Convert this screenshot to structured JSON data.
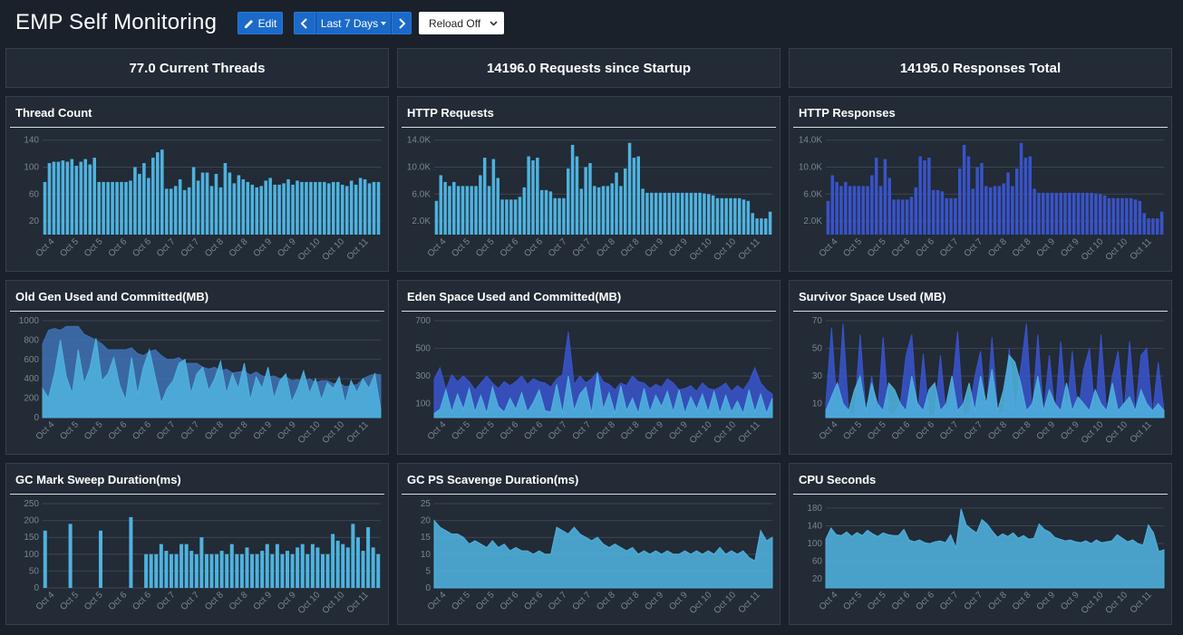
{
  "header": {
    "title": "EMP Self Monitoring",
    "edit_label": "Edit",
    "range_label": "Last 7 Days",
    "reload_label": "Reload Off"
  },
  "stats": [
    {
      "text": "77.0 Current Threads"
    },
    {
      "text": "14196.0 Requests since Startup"
    },
    {
      "text": "14195.0 Responses Total"
    }
  ],
  "x_labels": [
    "Oct 4",
    "Oct 5",
    "Oct 5",
    "Oct 6",
    "Oct 6",
    "Oct 7",
    "Oct 7",
    "Oct 8",
    "Oct 8",
    "Oct 9",
    "Oct 9",
    "Oct 10",
    "Oct 10",
    "Oct 11"
  ],
  "colors": {
    "primary": "#4fb2de",
    "secondary": "#3953c9",
    "muted": "#3e6fb0",
    "button": "#1b6ac9"
  },
  "panels": [
    {
      "title": "Thread Count"
    },
    {
      "title": "HTTP Requests"
    },
    {
      "title": "HTTP Responses"
    },
    {
      "title": "Old Gen Used and Committed(MB)"
    },
    {
      "title": "Eden Space Used and Committed(MB)"
    },
    {
      "title": "Survivor Space Used (MB)"
    },
    {
      "title": "GC Mark Sweep Duration(ms)"
    },
    {
      "title": "GC PS Scavenge Duration(ms)"
    },
    {
      "title": "CPU Seconds"
    }
  ],
  "chart_data": [
    {
      "name": "Thread Count",
      "type": "bar",
      "color": "primary",
      "yticks": [
        "140",
        "100",
        "60",
        "20"
      ],
      "ytick_values": [
        140,
        100,
        60,
        20
      ],
      "ylim": [
        0,
        145
      ],
      "series": [
        {
          "values": [
            78,
            106,
            108,
            108,
            110,
            108,
            112,
            102,
            108,
            112,
            104,
            114,
            78,
            78,
            78,
            78,
            78,
            78,
            78,
            80,
            100,
            90,
            106,
            84,
            114,
            122,
            126,
            68,
            68,
            72,
            82,
            66,
            70,
            100,
            80,
            92,
            92,
            72,
            90,
            70,
            106,
            92,
            76,
            88,
            82,
            78,
            74,
            70,
            72,
            80,
            84,
            74,
            74,
            76,
            82,
            74,
            80,
            78,
            78,
            78,
            78,
            78,
            78,
            76,
            78,
            78,
            74,
            72,
            80,
            74,
            84,
            82,
            76,
            78,
            78
          ]
        }
      ]
    },
    {
      "name": "HTTP Requests",
      "type": "bar",
      "color": "primary",
      "yticks": [
        "14.0K",
        "10.0K",
        "6.0K",
        "2.0K"
      ],
      "ytick_values": [
        14000,
        10000,
        6000,
        2000
      ],
      "ylim": [
        0,
        14500
      ],
      "series": [
        {
          "values": [
            5000,
            8800,
            7800,
            7200,
            7800,
            7200,
            7200,
            7200,
            7200,
            7200,
            8800,
            11400,
            7200,
            11200,
            8400,
            5200,
            5200,
            5200,
            5200,
            5600,
            7000,
            11600,
            11000,
            11400,
            6600,
            6600,
            6400,
            5400,
            5400,
            5400,
            9800,
            13300,
            11600,
            6800,
            10000,
            10600,
            7200,
            7000,
            7200,
            7200,
            7600,
            9200,
            7200,
            9800,
            13600,
            11400,
            11600,
            6800,
            6200,
            6200,
            6200,
            6200,
            6200,
            6200,
            6200,
            6200,
            6200,
            6200,
            6200,
            6200,
            6200,
            6100,
            6000,
            5800,
            5400,
            5400,
            5400,
            5400,
            5400,
            5400,
            5200,
            5000,
            3200,
            2400,
            2400,
            2400,
            3400
          ]
        }
      ]
    },
    {
      "name": "HTTP Responses",
      "type": "bar",
      "color": "secondary",
      "yticks": [
        "14.0K",
        "10.0K",
        "6.0K",
        "2.0K"
      ],
      "ytick_values": [
        14000,
        10000,
        6000,
        2000
      ],
      "ylim": [
        0,
        14500
      ],
      "series": [
        {
          "values": [
            5000,
            8800,
            7800,
            7200,
            7800,
            7200,
            7200,
            7200,
            7200,
            7200,
            8800,
            11400,
            7200,
            11200,
            8400,
            5200,
            5200,
            5200,
            5200,
            5600,
            7000,
            11600,
            11000,
            11400,
            6600,
            6600,
            6400,
            5400,
            5400,
            5400,
            9800,
            13300,
            11600,
            6800,
            10000,
            10600,
            7200,
            7000,
            7200,
            7200,
            7600,
            9200,
            7200,
            9800,
            13600,
            11400,
            11600,
            6800,
            6200,
            6200,
            6200,
            6200,
            6200,
            6200,
            6200,
            6200,
            6200,
            6200,
            6200,
            6200,
            6200,
            6100,
            6000,
            5800,
            5400,
            5400,
            5400,
            5400,
            5400,
            5400,
            5200,
            5000,
            3200,
            2400,
            2400,
            2400,
            3400
          ]
        }
      ]
    },
    {
      "name": "Old Gen Used and Committed(MB)",
      "type": "area",
      "yticks": [
        "1000",
        "800",
        "600",
        "400",
        "200",
        "0"
      ],
      "ytick_values": [
        1000,
        800,
        600,
        400,
        200,
        0
      ],
      "ylim": [
        0,
        1000
      ],
      "series": [
        {
          "name": "committed",
          "color": "muted",
          "values": [
            760,
            900,
            920,
            900,
            940,
            940,
            940,
            860,
            830,
            800,
            760,
            700,
            700,
            700,
            700,
            720,
            660,
            640,
            680,
            700,
            640,
            600,
            600,
            620,
            560,
            560,
            560,
            520,
            500,
            520,
            480,
            500,
            460,
            470,
            480,
            440,
            470,
            430,
            420,
            430,
            400,
            420,
            380,
            390,
            370,
            400,
            360,
            380,
            380,
            350,
            360,
            320,
            330,
            340,
            400,
            430,
            450,
            440
          ]
        },
        {
          "name": "used",
          "color": "primary",
          "values": [
            300,
            200,
            450,
            800,
            420,
            250,
            700,
            350,
            520,
            820,
            380,
            450,
            620,
            330,
            180,
            620,
            240,
            520,
            700,
            420,
            150,
            300,
            380,
            560,
            600,
            250,
            450,
            520,
            280,
            400,
            580,
            250,
            450,
            300,
            560,
            180,
            420,
            300,
            520,
            200,
            380,
            450,
            160,
            300,
            480,
            250,
            400,
            180,
            360,
            300,
            420,
            150,
            380,
            260,
            400,
            300,
            450,
            80
          ]
        }
      ]
    },
    {
      "name": "Eden Space Used and Committed(MB)",
      "type": "area",
      "yticks": [
        "700",
        "500",
        "300",
        "100"
      ],
      "ytick_values": [
        700,
        500,
        300,
        100
      ],
      "ylim": [
        0,
        700
      ],
      "series": [
        {
          "name": "committed",
          "color": "secondary",
          "values": [
            280,
            360,
            200,
            310,
            260,
            300,
            260,
            200,
            250,
            300,
            250,
            210,
            260,
            230,
            260,
            300,
            240,
            280,
            260,
            250,
            220,
            280,
            310,
            620,
            240,
            300,
            250,
            280,
            330,
            260,
            240,
            200,
            250,
            230,
            300,
            260,
            250,
            210,
            240,
            220,
            280,
            250,
            200,
            210,
            230,
            190,
            250,
            210,
            200,
            220,
            250,
            190,
            230,
            200,
            260,
            360,
            250,
            200,
            170
          ]
        },
        {
          "name": "used",
          "color": "primary",
          "values": [
            30,
            60,
            200,
            40,
            170,
            60,
            210,
            40,
            160,
            30,
            220,
            80,
            40,
            140,
            60,
            180,
            40,
            110,
            200,
            50,
            40,
            240,
            30,
            300,
            50,
            170,
            220,
            30,
            320,
            60,
            180,
            30,
            230,
            50,
            140,
            30,
            210,
            40,
            160,
            80,
            190,
            40,
            200,
            30,
            150,
            60,
            170,
            40,
            190,
            30,
            160,
            40,
            120,
            30,
            200,
            40,
            170,
            30,
            140
          ]
        }
      ]
    },
    {
      "name": "Survivor Space Used (MB)",
      "type": "area",
      "yticks": [
        "70",
        "50",
        "30",
        "10"
      ],
      "ytick_values": [
        70,
        50,
        30,
        10
      ],
      "ylim": [
        0,
        70
      ],
      "series": [
        {
          "name": "committed",
          "color": "secondary",
          "values": [
            10,
            65,
            5,
            68,
            2,
            3,
            60,
            2,
            30,
            1,
            58,
            2,
            3,
            10,
            45,
            60,
            2,
            46,
            1,
            2,
            45,
            1,
            20,
            62,
            1,
            3,
            30,
            48,
            2,
            58,
            3,
            4,
            50,
            2,
            35,
            68,
            2,
            60,
            3,
            45,
            2,
            55,
            3,
            48,
            2,
            35,
            50,
            2,
            60,
            3,
            30,
            48,
            2,
            55,
            3,
            45,
            50,
            2,
            40,
            5
          ]
        },
        {
          "name": "used",
          "color": "primary",
          "values": [
            5,
            15,
            25,
            10,
            5,
            20,
            30,
            5,
            25,
            10,
            5,
            25,
            20,
            10,
            5,
            30,
            10,
            5,
            20,
            25,
            5,
            10,
            30,
            5,
            10,
            25,
            5,
            30,
            10,
            35,
            5,
            20,
            45,
            40,
            25,
            5,
            10,
            30,
            5,
            20,
            10,
            5,
            25,
            5,
            15,
            10,
            5,
            20,
            10,
            5,
            25,
            5,
            10,
            15,
            5,
            20,
            10,
            5,
            10,
            5
          ]
        }
      ]
    },
    {
      "name": "GC Mark Sweep Duration(ms)",
      "type": "bar",
      "color": "primary",
      "yticks": [
        "250",
        "200",
        "150",
        "100",
        "50",
        "0"
      ],
      "ytick_values": [
        250,
        200,
        150,
        100,
        50,
        0
      ],
      "ylim": [
        0,
        250
      ],
      "series": [
        {
          "values": [
            170,
            0,
            0,
            0,
            0,
            190,
            0,
            0,
            0,
            0,
            0,
            170,
            0,
            0,
            0,
            0,
            0,
            210,
            0,
            0,
            100,
            100,
            100,
            130,
            110,
            100,
            100,
            130,
            130,
            110,
            100,
            150,
            100,
            100,
            100,
            110,
            100,
            130,
            100,
            100,
            120,
            100,
            100,
            110,
            130,
            100,
            130,
            100,
            110,
            100,
            120,
            130,
            100,
            130,
            120,
            100,
            100,
            160,
            140,
            130,
            120,
            190,
            150,
            110,
            180,
            120,
            100
          ]
        }
      ]
    },
    {
      "name": "GC PS Scavenge Duration(ms)",
      "type": "area",
      "color": "primary",
      "yticks": [
        "25",
        "20",
        "15",
        "10",
        "5",
        "0"
      ],
      "ytick_values": [
        25,
        20,
        15,
        10,
        5,
        0
      ],
      "ylim": [
        0,
        25
      ],
      "series": [
        {
          "values": [
            20,
            18,
            17,
            16,
            16,
            15,
            13,
            14,
            13,
            12,
            14,
            12,
            13,
            11,
            12,
            11,
            11,
            10,
            11,
            10,
            10,
            18,
            17,
            16,
            18,
            16,
            15,
            14,
            15,
            13,
            12,
            13,
            12,
            11,
            12,
            10,
            11,
            10,
            11,
            10,
            11,
            10,
            10,
            11,
            10,
            11,
            10,
            11,
            10,
            12,
            10,
            11,
            10,
            11,
            9,
            8,
            17,
            14,
            15
          ]
        }
      ]
    },
    {
      "name": "CPU Seconds",
      "type": "area",
      "color": "primary",
      "yticks": [
        "180",
        "140",
        "100",
        "60",
        "20"
      ],
      "ytick_values": [
        180,
        140,
        100,
        60,
        20
      ],
      "ylim": [
        0,
        190
      ],
      "series": [
        {
          "values": [
            110,
            135,
            120,
            118,
            126,
            116,
            125,
            118,
            130,
            122,
            116,
            124,
            120,
            118,
            118,
            132,
            108,
            104,
            108,
            102,
            100,
            104,
            106,
            102,
            120,
            90,
            178,
            142,
            132,
            124,
            154,
            144,
            128,
            114,
            122,
            116,
            124,
            112,
            118,
            110,
            112,
            144,
            132,
            126,
            114,
            110,
            106,
            108,
            104,
            102,
            106,
            100,
            108,
            102,
            104,
            106,
            120,
            112,
            104,
            108,
            100,
            96,
            142,
            124,
            82,
            86
          ]
        }
      ]
    }
  ]
}
